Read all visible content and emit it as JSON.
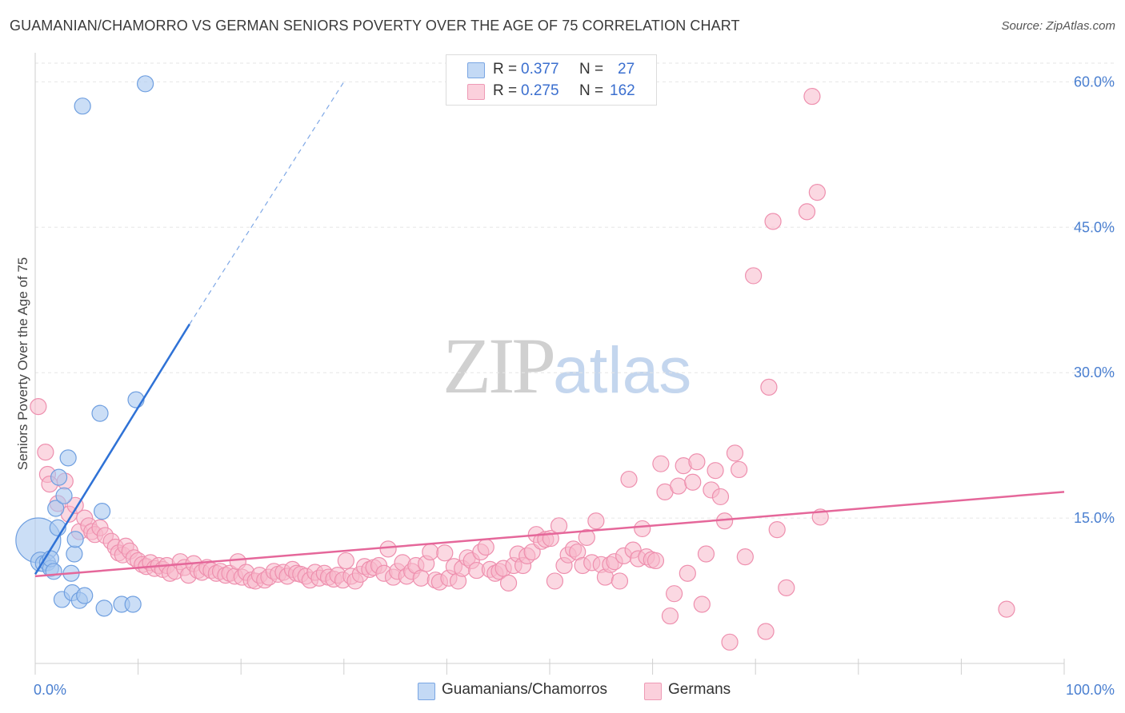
{
  "header": {
    "title": "GUAMANIAN/CHAMORRO VS GERMAN SENIORS POVERTY OVER THE AGE OF 75 CORRELATION CHART",
    "source": "Source: ZipAtlas.com"
  },
  "watermark": {
    "zip": "ZIP",
    "atlas": "atlas"
  },
  "legend": {
    "rows": [
      {
        "r_label": "R =",
        "r_value": "0.377",
        "n_label": "N =",
        "n_value": "27",
        "color": "#a9c8f0"
      },
      {
        "r_label": "R =",
        "r_value": "0.275",
        "n_label": "N =",
        "n_value": "162",
        "color": "#f7b8cb"
      }
    ]
  },
  "bottom_legend": [
    {
      "label": "Guamanians/Chamorros",
      "color": "#a9c8f0"
    },
    {
      "label": "Germans",
      "color": "#f7b8cb"
    }
  ],
  "chart_data": {
    "type": "scatter",
    "title": "GUAMANIAN/CHAMORRO VS GERMAN SENIORS POVERTY OVER THE AGE OF 75 CORRELATION CHART",
    "xlabel": "",
    "ylabel": "Seniors Poverty Over the Age of 75",
    "xlim": [
      0,
      100
    ],
    "ylim": [
      0,
      63
    ],
    "x_tick_labels": [
      "0.0%",
      "100.0%"
    ],
    "y_ticks": [
      15,
      30,
      45,
      60
    ],
    "y_tick_labels": [
      "15.0%",
      "30.0%",
      "45.0%",
      "60.0%"
    ],
    "grid": "horizontal dashed",
    "colors": {
      "guam_fill": "#a9c8f0",
      "guam_stroke": "#6f9fe0",
      "guam_line": "#2f72d6",
      "ger_fill": "#f7b8cb",
      "ger_stroke": "#ee8fae",
      "ger_line": "#e5679a"
    },
    "series": [
      {
        "name": "Guamanians/Chamorros",
        "R": 0.377,
        "N": 27,
        "trend": {
          "x0": 0,
          "y0": 9.2,
          "x1": 15,
          "y1": 35,
          "dash_to_x": 30,
          "dash_to_y": 60
        },
        "points": [
          [
            0.3,
            12.7,
            28
          ],
          [
            0.5,
            10.5,
            12
          ],
          [
            0.8,
            10.3,
            10
          ],
          [
            1.2,
            10.4,
            10
          ],
          [
            1.5,
            9.8,
            10
          ],
          [
            1.5,
            10.8,
            10
          ],
          [
            1.8,
            9.5,
            10
          ],
          [
            2.0,
            16,
            10
          ],
          [
            2.2,
            14,
            10
          ],
          [
            2.3,
            19.2,
            10
          ],
          [
            2.6,
            6.6,
            10
          ],
          [
            2.8,
            17.3,
            10
          ],
          [
            3.2,
            21.2,
            10
          ],
          [
            3.5,
            9.3,
            10
          ],
          [
            3.6,
            7.3,
            10
          ],
          [
            3.8,
            11.3,
            10
          ],
          [
            3.9,
            12.8,
            10
          ],
          [
            4.3,
            6.5,
            10
          ],
          [
            4.8,
            7.0,
            10
          ],
          [
            4.6,
            57.5,
            10
          ],
          [
            6.3,
            25.8,
            10
          ],
          [
            6.5,
            15.7,
            10
          ],
          [
            6.7,
            5.7,
            10
          ],
          [
            8.4,
            6.1,
            10
          ],
          [
            9.5,
            6.1,
            10
          ],
          [
            9.8,
            27.2,
            10
          ],
          [
            10.7,
            59.8,
            10
          ]
        ]
      },
      {
        "name": "Germans",
        "R": 0.275,
        "N": 162,
        "trend": {
          "x0": 0,
          "y0": 9.0,
          "x1": 100,
          "y1": 17.7
        },
        "points": [
          [
            0.3,
            26.5
          ],
          [
            1.0,
            21.8
          ],
          [
            1.2,
            19.5
          ],
          [
            1.4,
            18.5
          ],
          [
            2.2,
            16.5
          ],
          [
            2.9,
            18.8
          ],
          [
            3.3,
            15.4
          ],
          [
            3.9,
            16.3
          ],
          [
            4.3,
            13.6
          ],
          [
            4.8,
            15.0
          ],
          [
            5.2,
            14.2
          ],
          [
            5.5,
            13.6
          ],
          [
            5.8,
            13.3
          ],
          [
            6.3,
            14.0
          ],
          [
            6.8,
            13.2
          ],
          [
            7.4,
            12.6
          ],
          [
            7.8,
            12.0
          ],
          [
            8.1,
            11.4
          ],
          [
            8.5,
            11.2
          ],
          [
            8.8,
            12.1
          ],
          [
            9.2,
            11.6
          ],
          [
            9.6,
            10.9
          ],
          [
            10.0,
            10.6
          ],
          [
            10.4,
            10.2
          ],
          [
            10.8,
            10.0
          ],
          [
            11.2,
            10.4
          ],
          [
            11.6,
            9.8
          ],
          [
            12.0,
            10.1
          ],
          [
            12.4,
            9.7
          ],
          [
            12.8,
            10.1
          ],
          [
            13.1,
            9.3
          ],
          [
            13.6,
            9.5
          ],
          [
            14.1,
            10.5
          ],
          [
            14.5,
            9.9
          ],
          [
            14.9,
            9.1
          ],
          [
            15.4,
            10.3
          ],
          [
            15.8,
            9.6
          ],
          [
            16.2,
            9.4
          ],
          [
            16.7,
            9.9
          ],
          [
            17.1,
            9.6
          ],
          [
            17.6,
            9.3
          ],
          [
            18.0,
            9.5
          ],
          [
            18.5,
            9.1
          ],
          [
            18.9,
            9.3
          ],
          [
            19.4,
            9.0
          ],
          [
            19.7,
            10.5
          ],
          [
            20.1,
            8.9
          ],
          [
            20.5,
            9.4
          ],
          [
            21.0,
            8.6
          ],
          [
            21.4,
            8.5
          ],
          [
            21.8,
            9.1
          ],
          [
            22.3,
            8.6
          ],
          [
            22.7,
            8.9
          ],
          [
            23.2,
            9.5
          ],
          [
            23.6,
            9.2
          ],
          [
            24.1,
            9.4
          ],
          [
            24.5,
            9.0
          ],
          [
            25.0,
            9.7
          ],
          [
            25.4,
            9.3
          ],
          [
            25.8,
            9.2
          ],
          [
            26.3,
            9.0
          ],
          [
            26.7,
            8.6
          ],
          [
            27.2,
            9.4
          ],
          [
            27.6,
            8.8
          ],
          [
            28.1,
            9.3
          ],
          [
            28.5,
            8.9
          ],
          [
            29.0,
            8.7
          ],
          [
            29.4,
            9.1
          ],
          [
            29.9,
            8.6
          ],
          [
            30.2,
            10.6
          ],
          [
            30.7,
            9.0
          ],
          [
            31.1,
            8.5
          ],
          [
            31.6,
            9.2
          ],
          [
            32.0,
            10.0
          ],
          [
            32.5,
            9.7
          ],
          [
            32.9,
            9.9
          ],
          [
            33.4,
            10.1
          ],
          [
            33.9,
            9.3
          ],
          [
            34.3,
            11.8
          ],
          [
            34.8,
            8.9
          ],
          [
            35.2,
            9.5
          ],
          [
            35.7,
            10.4
          ],
          [
            36.1,
            9.0
          ],
          [
            36.6,
            9.5
          ],
          [
            37.0,
            10.1
          ],
          [
            37.5,
            8.8
          ],
          [
            38.0,
            10.3
          ],
          [
            38.4,
            11.5
          ],
          [
            38.9,
            8.6
          ],
          [
            39.3,
            8.4
          ],
          [
            39.8,
            11.4
          ],
          [
            40.2,
            8.8
          ],
          [
            40.7,
            10.0
          ],
          [
            41.1,
            8.5
          ],
          [
            41.5,
            9.8
          ],
          [
            42.0,
            10.9
          ],
          [
            42.4,
            10.6
          ],
          [
            42.9,
            9.6
          ],
          [
            43.3,
            11.5
          ],
          [
            43.8,
            12.0
          ],
          [
            44.2,
            9.7
          ],
          [
            44.7,
            9.3
          ],
          [
            45.1,
            9.5
          ],
          [
            45.5,
            9.8
          ],
          [
            46.0,
            8.3
          ],
          [
            46.5,
            10.1
          ],
          [
            46.9,
            11.3
          ],
          [
            47.4,
            10.1
          ],
          [
            47.8,
            11.1
          ],
          [
            48.3,
            11.5
          ],
          [
            48.7,
            13.3
          ],
          [
            49.2,
            12.6
          ],
          [
            49.6,
            12.8
          ],
          [
            50.1,
            12.9
          ],
          [
            50.5,
            8.5
          ],
          [
            50.9,
            14.2
          ],
          [
            51.4,
            10.1
          ],
          [
            51.8,
            11.2
          ],
          [
            52.3,
            11.8
          ],
          [
            52.7,
            11.5
          ],
          [
            53.2,
            10.1
          ],
          [
            53.6,
            13.0
          ],
          [
            54.1,
            10.4
          ],
          [
            54.5,
            14.7
          ],
          [
            55.0,
            10.2
          ],
          [
            55.4,
            8.9
          ],
          [
            55.9,
            10.2
          ],
          [
            56.3,
            10.5
          ],
          [
            56.8,
            8.5
          ],
          [
            57.2,
            11.1
          ],
          [
            57.7,
            19.0
          ],
          [
            58.1,
            11.7
          ],
          [
            58.6,
            10.8
          ],
          [
            59.0,
            13.9
          ],
          [
            59.4,
            11.0
          ],
          [
            59.9,
            10.7
          ],
          [
            60.3,
            10.6
          ],
          [
            60.8,
            20.6
          ],
          [
            61.2,
            17.7
          ],
          [
            61.7,
            4.9
          ],
          [
            62.1,
            7.2
          ],
          [
            62.5,
            18.3
          ],
          [
            63.0,
            20.4
          ],
          [
            63.4,
            9.3
          ],
          [
            63.9,
            18.7
          ],
          [
            64.3,
            20.8
          ],
          [
            64.8,
            6.1
          ],
          [
            65.2,
            11.3
          ],
          [
            65.7,
            17.9
          ],
          [
            66.1,
            19.9
          ],
          [
            66.6,
            17.2
          ],
          [
            67.0,
            14.7
          ],
          [
            67.5,
            2.2
          ],
          [
            68.0,
            21.7
          ],
          [
            68.4,
            20.0
          ],
          [
            69.0,
            11.0
          ],
          [
            69.8,
            40.0
          ],
          [
            71.0,
            3.3
          ],
          [
            71.3,
            28.5
          ],
          [
            71.7,
            45.6
          ],
          [
            72.1,
            13.8
          ],
          [
            73.0,
            7.8
          ],
          [
            75.0,
            46.6
          ],
          [
            75.5,
            58.5
          ],
          [
            76.0,
            48.6
          ],
          [
            76.3,
            15.1
          ],
          [
            94.4,
            5.6
          ]
        ]
      }
    ]
  }
}
